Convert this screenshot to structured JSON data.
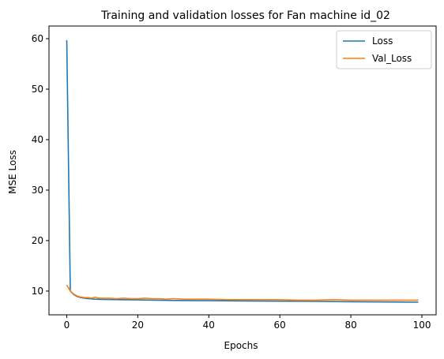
{
  "chart_data": {
    "type": "line",
    "title": "Training and validation losses for Fan machine id_02",
    "xlabel": "Epochs",
    "ylabel": "MSE Loss",
    "xlim": [
      -5,
      104
    ],
    "ylim": [
      5.3,
      62.5
    ],
    "xticks": [
      0,
      20,
      40,
      60,
      80,
      100
    ],
    "yticks": [
      10,
      20,
      30,
      40,
      50,
      60
    ],
    "legend_position": "top-right",
    "grid": false,
    "series": [
      {
        "name": "Loss",
        "color": "#1f77b4",
        "x": [
          0,
          1,
          2,
          3,
          4,
          5,
          6,
          8,
          10,
          15,
          20,
          25,
          30,
          40,
          50,
          60,
          70,
          80,
          90,
          99
        ],
        "y": [
          59.7,
          10.0,
          9.3,
          8.9,
          8.7,
          8.6,
          8.5,
          8.4,
          8.35,
          8.3,
          8.25,
          8.2,
          8.15,
          8.1,
          8.05,
          8.0,
          7.95,
          7.9,
          7.85,
          7.8
        ]
      },
      {
        "name": "Val_Loss",
        "color": "#ff7f0e",
        "x": [
          0,
          1,
          2,
          3,
          4,
          5,
          6,
          7,
          8,
          9,
          10,
          12,
          14,
          16,
          18,
          20,
          22,
          24,
          26,
          28,
          30,
          33,
          36,
          40,
          45,
          50,
          55,
          60,
          65,
          70,
          75,
          80,
          85,
          90,
          95,
          99
        ],
        "y": [
          11.2,
          10.0,
          9.4,
          9.0,
          8.8,
          8.7,
          8.7,
          8.6,
          8.8,
          8.6,
          8.6,
          8.6,
          8.5,
          8.6,
          8.5,
          8.5,
          8.6,
          8.5,
          8.5,
          8.4,
          8.5,
          8.4,
          8.4,
          8.4,
          8.3,
          8.3,
          8.3,
          8.3,
          8.2,
          8.2,
          8.3,
          8.2,
          8.2,
          8.2,
          8.2,
          8.2
        ]
      }
    ]
  }
}
